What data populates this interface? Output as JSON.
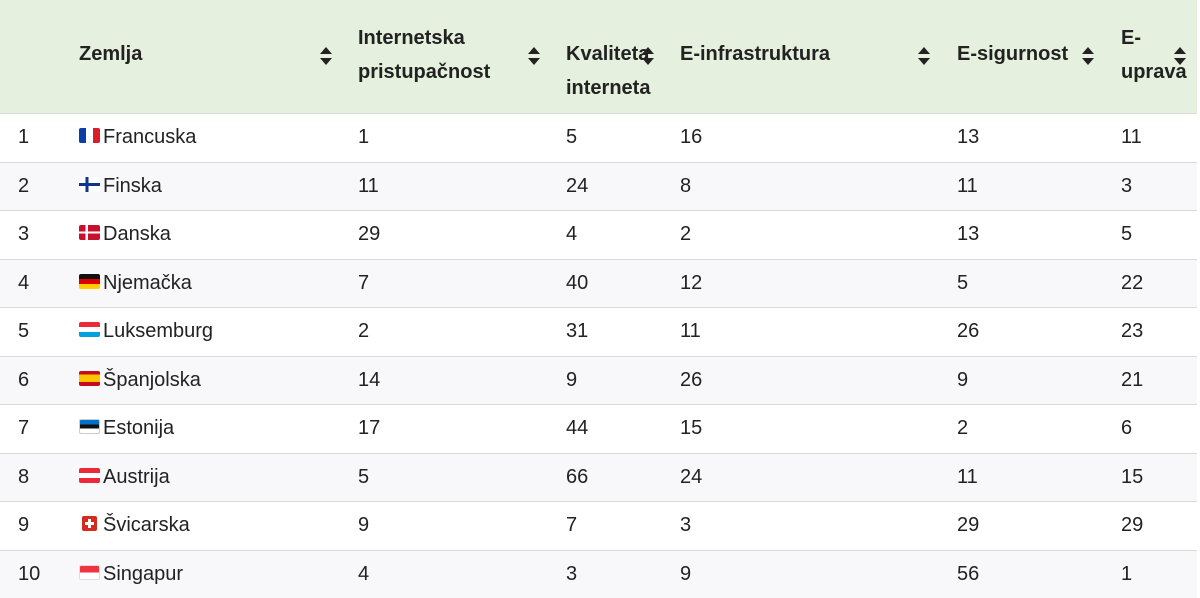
{
  "table": {
    "headers": [
      {
        "label": "Zemlja"
      },
      {
        "line1": "Internetska",
        "line2": "pristupačnost"
      },
      {
        "line1": "Kvaliteta",
        "line2": "interneta"
      },
      {
        "label": "E-infrastruktura"
      },
      {
        "label": "E-sigurnost"
      },
      {
        "line1": "E-",
        "line2": "uprava"
      }
    ],
    "rows": [
      {
        "rank": "1",
        "flag": "france-flag-icon",
        "country": "Francuska",
        "access": "1",
        "quality": "5",
        "infra": "16",
        "security": "13",
        "gov": "11"
      },
      {
        "rank": "2",
        "flag": "finland-flag-icon",
        "country": "Finska",
        "access": "11",
        "quality": "24",
        "infra": "8",
        "security": "11",
        "gov": "3"
      },
      {
        "rank": "3",
        "flag": "denmark-flag-icon",
        "country": "Danska",
        "access": "29",
        "quality": "4",
        "infra": "2",
        "security": "13",
        "gov": "5"
      },
      {
        "rank": "4",
        "flag": "germany-flag-icon",
        "country": "Njemačka",
        "access": "7",
        "quality": "40",
        "infra": "12",
        "security": "5",
        "gov": "22"
      },
      {
        "rank": "5",
        "flag": "luxembourg-flag-icon",
        "country": "Luksemburg",
        "access": "2",
        "quality": "31",
        "infra": "11",
        "security": "26",
        "gov": "23"
      },
      {
        "rank": "6",
        "flag": "spain-flag-icon",
        "country": "Španjolska",
        "access": "14",
        "quality": "9",
        "infra": "26",
        "security": "9",
        "gov": "21"
      },
      {
        "rank": "7",
        "flag": "estonia-flag-icon",
        "country": "Estonija",
        "access": "17",
        "quality": "44",
        "infra": "15",
        "security": "2",
        "gov": "6"
      },
      {
        "rank": "8",
        "flag": "austria-flag-icon",
        "country": "Austrija",
        "access": "5",
        "quality": "66",
        "infra": "24",
        "security": "11",
        "gov": "15"
      },
      {
        "rank": "9",
        "flag": "switzerland-flag-icon",
        "country": "Švicarska",
        "access": "9",
        "quality": "7",
        "infra": "3",
        "security": "29",
        "gov": "29"
      },
      {
        "rank": "10",
        "flag": "singapore-flag-icon",
        "country": "Singapur",
        "access": "4",
        "quality": "3",
        "infra": "9",
        "security": "56",
        "gov": "1"
      }
    ]
  },
  "colors": {
    "header_bg": "#e6f0de",
    "row_alt_bg": "#f8f7f9",
    "border": "#d9d9d9"
  }
}
